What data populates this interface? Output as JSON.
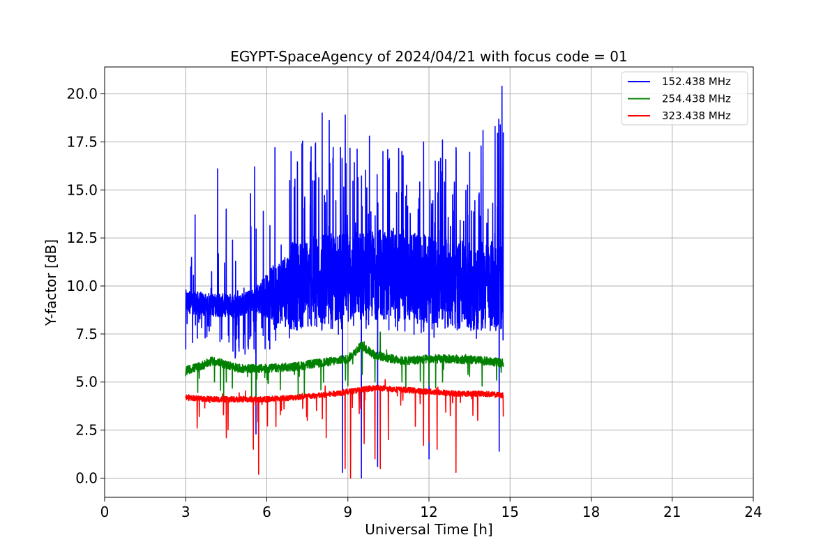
{
  "chart_data": {
    "type": "line",
    "title": "EGYPT-SpaceAgency of 2024/04/21 with focus code = 01",
    "xlabel": "Universal Time [h]",
    "ylabel": "Y-factor [dB]",
    "xlim": [
      0,
      24
    ],
    "ylim": [
      -1,
      21.4
    ],
    "xticks": [
      0,
      3,
      6,
      9,
      12,
      15,
      18,
      21,
      24
    ],
    "xtick_labels": [
      "0",
      "3",
      "6",
      "9",
      "12",
      "15",
      "18",
      "21",
      "24"
    ],
    "yticks": [
      0,
      2.5,
      5,
      7.5,
      10,
      12.5,
      15,
      17.5,
      20
    ],
    "ytick_labels": [
      "0.0",
      "2.5",
      "5.0",
      "7.5",
      "10.0",
      "12.5",
      "15.0",
      "17.5",
      "20.0"
    ],
    "grid": true,
    "legend_position": "top-right",
    "series": [
      {
        "name": "152.438 MHz",
        "color": "#0000ff",
        "x_range": [
          3.0,
          14.75
        ],
        "baseline": [
          [
            3.0,
            9.2
          ],
          [
            4.0,
            9.0
          ],
          [
            5.0,
            9.0
          ],
          [
            6.0,
            9.5
          ],
          [
            7.0,
            10.0
          ],
          [
            8.0,
            10.3
          ],
          [
            9.0,
            10.5
          ],
          [
            10.0,
            10.6
          ],
          [
            11.0,
            10.5
          ],
          [
            12.0,
            10.3
          ],
          [
            13.0,
            10.0
          ],
          [
            14.0,
            10.0
          ],
          [
            14.75,
            10.0
          ]
        ],
        "envelope_max": [
          [
            3.0,
            10.5
          ],
          [
            3.3,
            13.7
          ],
          [
            4.2,
            16.1
          ],
          [
            5.5,
            16.2
          ],
          [
            6.3,
            17.3
          ],
          [
            7.2,
            17.4
          ],
          [
            8.0,
            19.0
          ],
          [
            8.9,
            18.9
          ],
          [
            9.2,
            17.8
          ],
          [
            10.0,
            17.8
          ],
          [
            11.0,
            17.6
          ],
          [
            12.0,
            17.5
          ],
          [
            12.5,
            17.6
          ],
          [
            13.0,
            17.2
          ],
          [
            14.0,
            18.1
          ],
          [
            14.7,
            20.4
          ]
        ],
        "envelope_min": [
          [
            3.0,
            6.7
          ],
          [
            4.0,
            7.5
          ],
          [
            5.5,
            2.3
          ],
          [
            6.0,
            6.0
          ],
          [
            7.5,
            4.0
          ],
          [
            8.8,
            0.3
          ],
          [
            9.5,
            0.0
          ],
          [
            10.1,
            0.6
          ],
          [
            12.0,
            1.0
          ],
          [
            13.0,
            1.5
          ],
          [
            14.6,
            1.4
          ]
        ],
        "spikes": [
          [
            3.0,
            6.7
          ],
          [
            3.35,
            13.7
          ],
          [
            4.18,
            16.1
          ],
          [
            4.5,
            14.0
          ],
          [
            5.4,
            14.8
          ],
          [
            5.55,
            16.2
          ],
          [
            5.6,
            2.3
          ],
          [
            6.3,
            17.2
          ],
          [
            6.9,
            17.0
          ],
          [
            7.3,
            17.4
          ],
          [
            8.05,
            19.0
          ],
          [
            8.8,
            0.3
          ],
          [
            8.9,
            18.9
          ],
          [
            9.5,
            0.0
          ],
          [
            9.8,
            17.8
          ],
          [
            10.1,
            0.6
          ],
          [
            10.3,
            17.0
          ],
          [
            11.0,
            17.0
          ],
          [
            11.8,
            17.5
          ],
          [
            12.0,
            1.0
          ],
          [
            12.5,
            17.6
          ],
          [
            13.0,
            17.2
          ],
          [
            14.0,
            18.1
          ],
          [
            14.6,
            1.4
          ],
          [
            14.7,
            20.4
          ],
          [
            14.75,
            18.0
          ]
        ]
      },
      {
        "name": "254.438 MHz",
        "color": "#008000",
        "x_range": [
          3.0,
          14.75
        ],
        "baseline": [
          [
            3.0,
            5.6
          ],
          [
            3.5,
            5.8
          ],
          [
            4.0,
            6.1
          ],
          [
            5.0,
            5.7
          ],
          [
            6.0,
            5.7
          ],
          [
            7.0,
            5.8
          ],
          [
            8.0,
            6.0
          ],
          [
            9.0,
            6.2
          ],
          [
            9.5,
            6.9
          ],
          [
            10.0,
            6.4
          ],
          [
            11.0,
            6.1
          ],
          [
            12.0,
            6.2
          ],
          [
            13.0,
            6.2
          ],
          [
            14.0,
            6.1
          ],
          [
            14.75,
            6.0
          ]
        ],
        "spikes": [
          [
            3.0,
            5.3
          ],
          [
            3.5,
            5.2
          ],
          [
            4.5,
            5.0
          ],
          [
            5.6,
            4.0
          ],
          [
            6.5,
            4.6
          ],
          [
            7.2,
            5.3
          ],
          [
            8.0,
            4.6
          ],
          [
            9.0,
            4.8
          ],
          [
            9.6,
            7.1
          ],
          [
            10.0,
            5.0
          ],
          [
            10.2,
            7.6
          ],
          [
            11.0,
            5.0
          ],
          [
            12.0,
            4.8
          ],
          [
            12.5,
            5.0
          ],
          [
            13.5,
            5.3
          ],
          [
            14.5,
            5.1
          ]
        ]
      },
      {
        "name": "323.438 MHz",
        "color": "#ff0000",
        "x_range": [
          3.0,
          14.75
        ],
        "baseline": [
          [
            3.0,
            4.2
          ],
          [
            4.0,
            4.1
          ],
          [
            5.0,
            4.1
          ],
          [
            6.0,
            4.1
          ],
          [
            7.0,
            4.2
          ],
          [
            8.0,
            4.3
          ],
          [
            9.0,
            4.5
          ],
          [
            10.0,
            4.7
          ],
          [
            11.0,
            4.6
          ],
          [
            12.0,
            4.5
          ],
          [
            13.0,
            4.4
          ],
          [
            14.0,
            4.4
          ],
          [
            14.75,
            4.3
          ]
        ],
        "spikes": [
          [
            3.5,
            3.2
          ],
          [
            4.5,
            2.1
          ],
          [
            5.5,
            1.5
          ],
          [
            5.7,
            0.2
          ],
          [
            6.5,
            3.3
          ],
          [
            7.5,
            3.0
          ],
          [
            8.2,
            2.1
          ],
          [
            8.9,
            0.5
          ],
          [
            9.1,
            0.0
          ],
          [
            9.6,
            1.8
          ],
          [
            10.0,
            1.0
          ],
          [
            10.2,
            0.5
          ],
          [
            10.5,
            2.0
          ],
          [
            11.5,
            2.7
          ],
          [
            11.8,
            1.7
          ],
          [
            12.0,
            1.9
          ],
          [
            12.3,
            1.5
          ],
          [
            13.0,
            0.3
          ],
          [
            13.8,
            3.0
          ],
          [
            14.75,
            3.2
          ]
        ]
      }
    ]
  }
}
